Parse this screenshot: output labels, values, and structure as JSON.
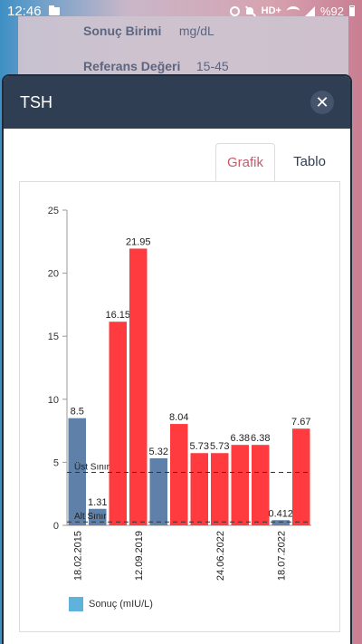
{
  "status_bar": {
    "time": "12:46",
    "network": "HD+",
    "battery": "%92"
  },
  "background": {
    "rows": [
      {
        "label": "Sonuç Birimi",
        "value": "mg/dL"
      },
      {
        "label": "Referans Değeri",
        "value": "15-45"
      }
    ]
  },
  "modal": {
    "title": "TSH",
    "close_label": "✕",
    "tabs": [
      {
        "label": "Grafik",
        "active": true
      },
      {
        "label": "Tablo",
        "active": false
      }
    ]
  },
  "chart_data": {
    "type": "bar",
    "categories": [
      "18.02.2015",
      "",
      "",
      "12.09.2019",
      "",
      "",
      "",
      "24.06.2022",
      "",
      "",
      "18.07.2022",
      ""
    ],
    "values": [
      8.5,
      1.31,
      16.15,
      21.95,
      5.32,
      8.04,
      5.73,
      5.73,
      6.38,
      6.38,
      0.412,
      7.67
    ],
    "value_labels": [
      "8.5",
      "1.31",
      "16.15",
      "21.95",
      "5.32",
      "8.04",
      "5.73",
      "5.73",
      "6.38",
      "6.38",
      "0.412",
      "7.67"
    ],
    "bar_status": [
      "normal",
      "normal",
      "high",
      "high",
      "normal",
      "high",
      "high",
      "high",
      "high",
      "high",
      "normal",
      "high"
    ],
    "ylim": [
      0,
      25
    ],
    "yticks": [
      0,
      5,
      10,
      15,
      20,
      25
    ],
    "reference_lines": [
      {
        "label": "Üst Sınır",
        "value": 4.2
      },
      {
        "label": "Alt Sınır",
        "value": 0.27
      }
    ],
    "legend": [
      {
        "label": "Sonuç (mIU/L)"
      }
    ],
    "colors": {
      "normal": "#5f80a8",
      "high": "#ff3b3f",
      "legend": "#5fb2db",
      "axis": "#999999",
      "reference": "#333333"
    },
    "legend_position": "bottom-left",
    "grid": false
  }
}
